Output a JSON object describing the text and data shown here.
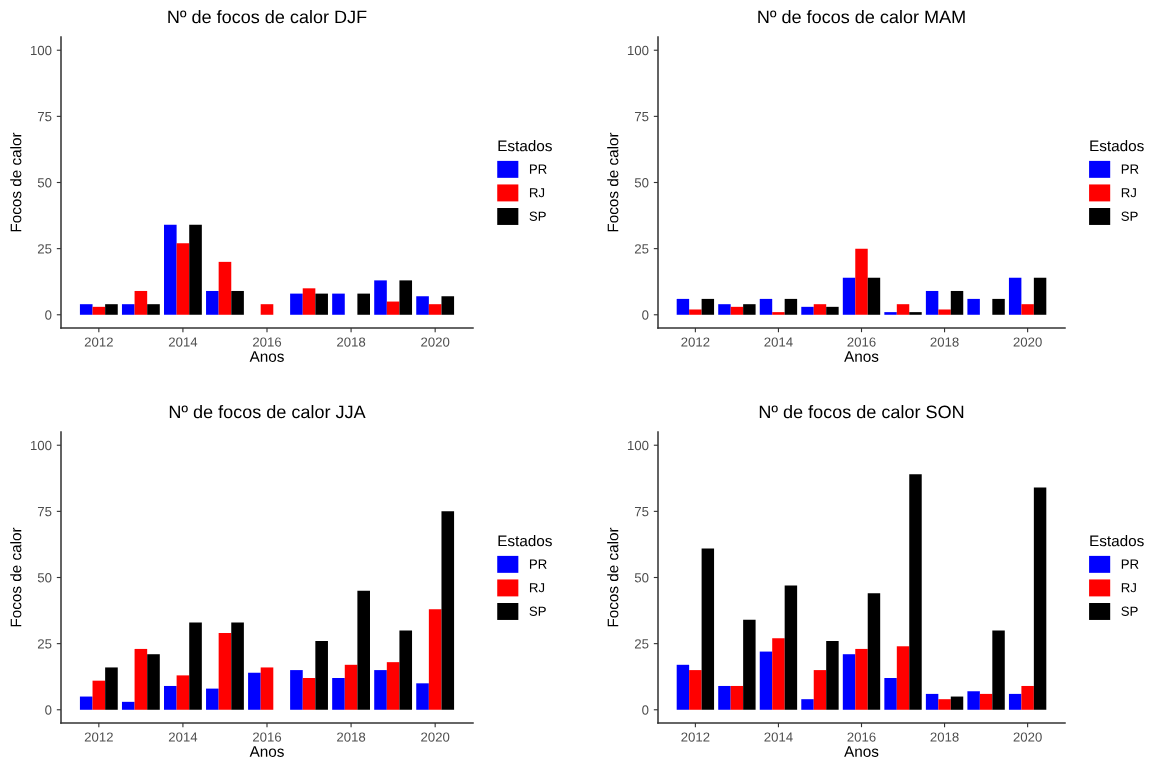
{
  "chart_data": [
    {
      "type": "bar",
      "title": "Nº de focos de calor DJF",
      "xlabel": "Anos",
      "ylabel": "Focos de calor",
      "legend_title": "Estados",
      "legend": "right",
      "grid": false,
      "x": [
        2012,
        2013,
        2014,
        2015,
        2016,
        2017,
        2018,
        2019,
        2020
      ],
      "xlim": [
        2011.1,
        2020.9
      ],
      "xticks": [
        2012,
        2014,
        2016,
        2018,
        2020
      ],
      "ylim": [
        -5,
        105
      ],
      "yticks": [
        0,
        25,
        50,
        75,
        100
      ],
      "series": [
        {
          "name": "PR",
          "color": "#0000ff",
          "values": [
            4,
            4,
            34,
            9,
            0,
            8,
            8,
            13,
            7
          ]
        },
        {
          "name": "RJ",
          "color": "#ff0000",
          "values": [
            3,
            9,
            27,
            20,
            4,
            10,
            0,
            5,
            4
          ]
        },
        {
          "name": "SP",
          "color": "#000000",
          "values": [
            4,
            4,
            34,
            9,
            0,
            8,
            8,
            13,
            7
          ]
        }
      ]
    },
    {
      "type": "bar",
      "title": "Nº de focos de calor MAM",
      "xlabel": "Anos",
      "ylabel": "Focos de calor",
      "legend_title": "Estados",
      "legend": "right",
      "grid": false,
      "x": [
        2012,
        2013,
        2014,
        2015,
        2016,
        2017,
        2018,
        2019,
        2020
      ],
      "xlim": [
        2011.1,
        2020.9
      ],
      "xticks": [
        2012,
        2014,
        2016,
        2018,
        2020
      ],
      "ylim": [
        -5,
        105
      ],
      "yticks": [
        0,
        25,
        50,
        75,
        100
      ],
      "series": [
        {
          "name": "PR",
          "color": "#0000ff",
          "values": [
            6,
            4,
            6,
            3,
            14,
            1,
            9,
            6,
            14
          ]
        },
        {
          "name": "RJ",
          "color": "#ff0000",
          "values": [
            2,
            3,
            1,
            4,
            25,
            4,
            2,
            0,
            4
          ]
        },
        {
          "name": "SP",
          "color": "#000000",
          "values": [
            6,
            4,
            6,
            3,
            14,
            1,
            9,
            6,
            14
          ]
        }
      ]
    },
    {
      "type": "bar",
      "title": "Nº de focos de calor JJA",
      "xlabel": "Anos",
      "ylabel": "Focos de calor",
      "legend_title": "Estados",
      "legend": "right",
      "grid": false,
      "x": [
        2012,
        2013,
        2014,
        2015,
        2016,
        2017,
        2018,
        2019,
        2020
      ],
      "xlim": [
        2011.1,
        2020.9
      ],
      "xticks": [
        2012,
        2014,
        2016,
        2018,
        2020
      ],
      "ylim": [
        -5,
        105
      ],
      "yticks": [
        0,
        25,
        50,
        75,
        100
      ],
      "series": [
        {
          "name": "PR",
          "color": "#0000ff",
          "values": [
            5,
            3,
            9,
            8,
            14,
            15,
            12,
            15,
            10
          ]
        },
        {
          "name": "RJ",
          "color": "#ff0000",
          "values": [
            11,
            23,
            13,
            29,
            16,
            12,
            17,
            18,
            38
          ]
        },
        {
          "name": "SP",
          "color": "#000000",
          "values": [
            16,
            21,
            33,
            33,
            0,
            26,
            45,
            30,
            75
          ]
        }
      ]
    },
    {
      "type": "bar",
      "title": "Nº de focos de calor SON",
      "xlabel": "Anos",
      "ylabel": "Focos de calor",
      "legend_title": "Estados",
      "legend": "right",
      "grid": false,
      "x": [
        2012,
        2013,
        2014,
        2015,
        2016,
        2017,
        2018,
        2019,
        2020
      ],
      "xlim": [
        2011.1,
        2020.9
      ],
      "xticks": [
        2012,
        2014,
        2016,
        2018,
        2020
      ],
      "ylim": [
        -5,
        105
      ],
      "yticks": [
        0,
        25,
        50,
        75,
        100
      ],
      "series": [
        {
          "name": "PR",
          "color": "#0000ff",
          "values": [
            17,
            9,
            22,
            4,
            21,
            12,
            6,
            7,
            6
          ]
        },
        {
          "name": "RJ",
          "color": "#ff0000",
          "values": [
            15,
            9,
            27,
            15,
            23,
            24,
            4,
            6,
            9
          ]
        },
        {
          "name": "SP",
          "color": "#000000",
          "values": [
            61,
            34,
            47,
            26,
            44,
            89,
            5,
            30,
            84
          ]
        }
      ]
    }
  ]
}
